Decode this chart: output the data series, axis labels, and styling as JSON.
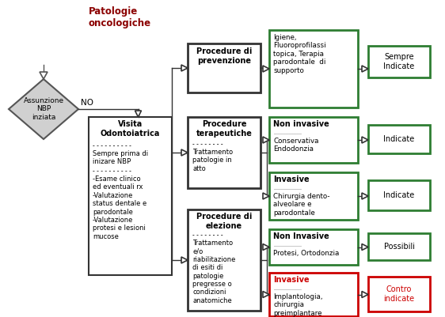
{
  "bg_color": "#ffffff",
  "title_text": "Patologie\noncologiche",
  "title_color": "#8B0000",
  "diamond_text": "Assunzione\nNBP\ninziata",
  "no_label": "NO",
  "green_border": "#2E7D32",
  "red_border": "#CC0000",
  "dark_border": "#333333",
  "box1_text": "Igiene,\nFluoroprofilassi\ntopica, Terapia\nparodontale  di\nsupporto",
  "box2_header": "Non invasive",
  "box2_text": "Conservativa\nEndodonzia",
  "box3_header": "Invasive",
  "box3_text": "Chirurgia dento-\nalveolare e\nparodontale",
  "box4_header": "Non Invasive",
  "box4_text": "Protesi, Ortodonzia",
  "box5_header": "Invasive",
  "box5_text": "Implantologia,\nchirurgia\npreimplantare",
  "out1_text": "Sempre\nIndicate",
  "out2_text": "Indicate",
  "out3_text": "Indicate",
  "out4_text": "Possibili",
  "out5_text": "Contro\nindicate"
}
